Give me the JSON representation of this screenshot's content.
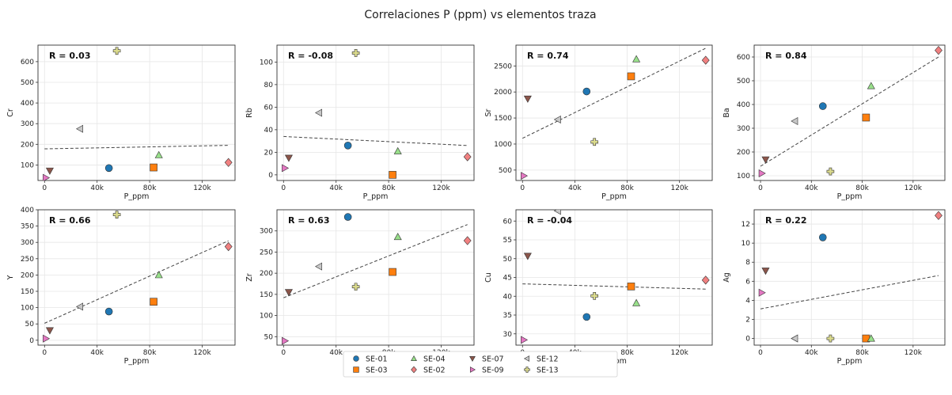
{
  "title": "Correlaciones P (ppm) vs elementos traza",
  "colors": {
    "SE-01": "#1f77b4",
    "SE-03": "#ff7f0e",
    "SE-04": "#98df8a",
    "SE-02": "#f08080",
    "SE-07": "#8c564b",
    "SE-09": "#e377c2",
    "SE-12": "#c7c7c7",
    "SE-13": "#dbdb8d"
  },
  "markers": {
    "SE-01": "circle",
    "SE-03": "square",
    "SE-04": "triangle-up",
    "SE-02": "diamond",
    "SE-07": "triangle-down",
    "SE-09": "triangle-right",
    "SE-12": "triangle-left",
    "SE-13": "plus"
  },
  "legend": {
    "placement": "bottom-center",
    "entries": [
      "SE-01",
      "SE-03",
      "SE-04",
      "SE-02",
      "SE-07",
      "SE-09",
      "SE-12",
      "SE-13"
    ]
  },
  "chart_data": [
    {
      "type": "scatter",
      "xlabel": "P_ppm",
      "ylabel": "Cr",
      "annotation": "R = 0.03",
      "xlim": [
        -5000,
        145000
      ],
      "ylim": [
        25,
        680
      ],
      "xticks": [
        0,
        40000,
        80000,
        120000
      ],
      "xticklabels": [
        "0",
        "40k",
        "80k",
        "120k"
      ],
      "yticks": [
        100,
        200,
        300,
        400,
        500,
        600
      ],
      "yticklabels": [
        "100",
        "200",
        "300",
        "400",
        "500",
        "600"
      ],
      "trend": [
        [
          0,
          178
        ],
        [
          140000,
          195
        ]
      ],
      "points": [
        {
          "sample": "SE-01",
          "x": 49000,
          "y": 85
        },
        {
          "sample": "SE-03",
          "x": 83000,
          "y": 88
        },
        {
          "sample": "SE-04",
          "x": 87000,
          "y": 148
        },
        {
          "sample": "SE-02",
          "x": 140000,
          "y": 112
        },
        {
          "sample": "SE-07",
          "x": 4000,
          "y": 72
        },
        {
          "sample": "SE-09",
          "x": 1000,
          "y": 38
        },
        {
          "sample": "SE-12",
          "x": 27000,
          "y": 275
        },
        {
          "sample": "SE-13",
          "x": 55000,
          "y": 652
        }
      ]
    },
    {
      "type": "scatter",
      "xlabel": "P_ppm",
      "ylabel": "Rb",
      "annotation": "R = -0.08",
      "xlim": [
        -5000,
        145000
      ],
      "ylim": [
        -5,
        115
      ],
      "xticks": [
        0,
        40000,
        80000,
        120000
      ],
      "xticklabels": [
        "0",
        "40k",
        "80k",
        "120k"
      ],
      "yticks": [
        0,
        20,
        40,
        60,
        80,
        100
      ],
      "yticklabels": [
        "0",
        "20",
        "40",
        "60",
        "80",
        "100"
      ],
      "trend": [
        [
          0,
          34
        ],
        [
          140000,
          26
        ]
      ],
      "points": [
        {
          "sample": "SE-01",
          "x": 49000,
          "y": 26
        },
        {
          "sample": "SE-03",
          "x": 83000,
          "y": 0
        },
        {
          "sample": "SE-04",
          "x": 87000,
          "y": 21
        },
        {
          "sample": "SE-02",
          "x": 140000,
          "y": 16
        },
        {
          "sample": "SE-07",
          "x": 4000,
          "y": 15
        },
        {
          "sample": "SE-09",
          "x": 1000,
          "y": 6
        },
        {
          "sample": "SE-12",
          "x": 27000,
          "y": 55
        },
        {
          "sample": "SE-13",
          "x": 55000,
          "y": 108
        }
      ]
    },
    {
      "type": "scatter",
      "xlabel": "P_ppm",
      "ylabel": "Sr",
      "annotation": "R = 0.74",
      "xlim": [
        -5000,
        145000
      ],
      "ylim": [
        300,
        2900
      ],
      "xticks": [
        0,
        40000,
        80000,
        120000
      ],
      "xticklabels": [
        "0",
        "40k",
        "80k",
        "120k"
      ],
      "yticks": [
        500,
        1000,
        1500,
        2000,
        2500
      ],
      "yticklabels": [
        "500",
        "1000",
        "1500",
        "2000",
        "2500"
      ],
      "trend": [
        [
          0,
          1110
        ],
        [
          140000,
          2840
        ]
      ],
      "points": [
        {
          "sample": "SE-01",
          "x": 49000,
          "y": 2010
        },
        {
          "sample": "SE-03",
          "x": 83000,
          "y": 2300
        },
        {
          "sample": "SE-04",
          "x": 87000,
          "y": 2630
        },
        {
          "sample": "SE-02",
          "x": 140000,
          "y": 2610
        },
        {
          "sample": "SE-07",
          "x": 4000,
          "y": 1870
        },
        {
          "sample": "SE-09",
          "x": 1000,
          "y": 390
        },
        {
          "sample": "SE-12",
          "x": 27000,
          "y": 1470
        },
        {
          "sample": "SE-13",
          "x": 55000,
          "y": 1040
        }
      ]
    },
    {
      "type": "scatter",
      "xlabel": "P_ppm",
      "ylabel": "Ba",
      "annotation": "R = 0.84",
      "xlim": [
        -5000,
        145000
      ],
      "ylim": [
        80,
        650
      ],
      "xticks": [
        0,
        40000,
        80000,
        120000
      ],
      "xticklabels": [
        "0",
        "40k",
        "80k",
        "120k"
      ],
      "yticks": [
        100,
        200,
        300,
        400,
        500,
        600
      ],
      "yticklabels": [
        "100",
        "200",
        "300",
        "400",
        "500",
        "600"
      ],
      "trend": [
        [
          0,
          140
        ],
        [
          140000,
          600
        ]
      ],
      "points": [
        {
          "sample": "SE-01",
          "x": 49000,
          "y": 393
        },
        {
          "sample": "SE-03",
          "x": 83000,
          "y": 345
        },
        {
          "sample": "SE-04",
          "x": 87000,
          "y": 478
        },
        {
          "sample": "SE-02",
          "x": 140000,
          "y": 628
        },
        {
          "sample": "SE-07",
          "x": 4000,
          "y": 168
        },
        {
          "sample": "SE-09",
          "x": 1000,
          "y": 110
        },
        {
          "sample": "SE-12",
          "x": 27000,
          "y": 330
        },
        {
          "sample": "SE-13",
          "x": 55000,
          "y": 118
        }
      ]
    },
    {
      "type": "scatter",
      "xlabel": "P_ppm",
      "ylabel": "Y",
      "annotation": "R = 0.66",
      "xlim": [
        -5000,
        145000
      ],
      "ylim": [
        -15,
        400
      ],
      "xticks": [
        0,
        40000,
        80000,
        120000
      ],
      "xticklabels": [
        "0",
        "40k",
        "80k",
        "120k"
      ],
      "yticks": [
        0,
        50,
        100,
        150,
        200,
        250,
        300,
        350,
        400
      ],
      "yticklabels": [
        "0",
        "50",
        "100",
        "150",
        "200",
        "250",
        "300",
        "350",
        "400"
      ],
      "trend": [
        [
          0,
          52
        ],
        [
          140000,
          305
        ]
      ],
      "points": [
        {
          "sample": "SE-01",
          "x": 49000,
          "y": 88
        },
        {
          "sample": "SE-03",
          "x": 83000,
          "y": 118
        },
        {
          "sample": "SE-04",
          "x": 87000,
          "y": 200
        },
        {
          "sample": "SE-02",
          "x": 140000,
          "y": 287
        },
        {
          "sample": "SE-07",
          "x": 4000,
          "y": 30
        },
        {
          "sample": "SE-09",
          "x": 1000,
          "y": 5
        },
        {
          "sample": "SE-12",
          "x": 27000,
          "y": 103
        },
        {
          "sample": "SE-13",
          "x": 55000,
          "y": 385
        }
      ]
    },
    {
      "type": "scatter",
      "xlabel": "P_ppm",
      "ylabel": "Zr",
      "annotation": "R = 0.63",
      "xlim": [
        -5000,
        145000
      ],
      "ylim": [
        30,
        350
      ],
      "xticks": [
        0,
        40000,
        80000,
        120000
      ],
      "xticklabels": [
        "0",
        "40k",
        "80k",
        "120k"
      ],
      "yticks": [
        50,
        100,
        150,
        200,
        250,
        300
      ],
      "yticklabels": [
        "50",
        "100",
        "150",
        "200",
        "250",
        "300"
      ],
      "trend": [
        [
          0,
          142
        ],
        [
          140000,
          315
        ]
      ],
      "points": [
        {
          "sample": "SE-01",
          "x": 49000,
          "y": 333
        },
        {
          "sample": "SE-03",
          "x": 83000,
          "y": 203
        },
        {
          "sample": "SE-04",
          "x": 87000,
          "y": 286
        },
        {
          "sample": "SE-02",
          "x": 140000,
          "y": 277
        },
        {
          "sample": "SE-07",
          "x": 4000,
          "y": 155
        },
        {
          "sample": "SE-09",
          "x": 1000,
          "y": 40
        },
        {
          "sample": "SE-12",
          "x": 27000,
          "y": 216
        },
        {
          "sample": "SE-13",
          "x": 55000,
          "y": 168
        }
      ]
    },
    {
      "type": "scatter",
      "xlabel": "P_ppm",
      "ylabel": "Cu",
      "annotation": "R = -0.04",
      "xlim": [
        -5000,
        145000
      ],
      "ylim": [
        27,
        63
      ],
      "xticks": [
        0,
        40000,
        80000,
        120000
      ],
      "xticklabels": [
        "0",
        "40k",
        "80k",
        "120k"
      ],
      "yticks": [
        30,
        35,
        40,
        45,
        50,
        55,
        60
      ],
      "yticklabels": [
        "30",
        "35",
        "40",
        "45",
        "50",
        "55",
        "60"
      ],
      "trend": [
        [
          0,
          43.3
        ],
        [
          140000,
          41.9
        ]
      ],
      "points": [
        {
          "sample": "SE-01",
          "x": 49000,
          "y": 34.5
        },
        {
          "sample": "SE-03",
          "x": 83000,
          "y": 42.6
        },
        {
          "sample": "SE-04",
          "x": 87000,
          "y": 38.2
        },
        {
          "sample": "SE-02",
          "x": 140000,
          "y": 44.3
        },
        {
          "sample": "SE-07",
          "x": 4000,
          "y": 50.7
        },
        {
          "sample": "SE-09",
          "x": 1000,
          "y": 28.4
        },
        {
          "sample": "SE-12",
          "x": 27000,
          "y": 62.7
        },
        {
          "sample": "SE-13",
          "x": 55000,
          "y": 40.1
        }
      ]
    },
    {
      "type": "scatter",
      "xlabel": "P_ppm",
      "ylabel": "Ag",
      "annotation": "R = 0.22",
      "xlim": [
        -5000,
        145000
      ],
      "ylim": [
        -0.7,
        13.5
      ],
      "xticks": [
        0,
        40000,
        80000,
        120000
      ],
      "xticklabels": [
        "0",
        "40k",
        "80k",
        "120k"
      ],
      "yticks": [
        0,
        2,
        4,
        6,
        8,
        10,
        12
      ],
      "yticklabels": [
        "0",
        "2",
        "4",
        "6",
        "8",
        "10",
        "12"
      ],
      "trend": [
        [
          0,
          3.1
        ],
        [
          140000,
          6.6
        ]
      ],
      "points": [
        {
          "sample": "SE-01",
          "x": 49000,
          "y": 10.6
        },
        {
          "sample": "SE-03",
          "x": 83000,
          "y": 0
        },
        {
          "sample": "SE-04",
          "x": 87000,
          "y": 0
        },
        {
          "sample": "SE-02",
          "x": 140000,
          "y": 12.9
        },
        {
          "sample": "SE-07",
          "x": 4000,
          "y": 7.1
        },
        {
          "sample": "SE-09",
          "x": 1000,
          "y": 4.8
        },
        {
          "sample": "SE-12",
          "x": 27000,
          "y": 0
        },
        {
          "sample": "SE-13",
          "x": 55000,
          "y": 0
        }
      ]
    }
  ]
}
